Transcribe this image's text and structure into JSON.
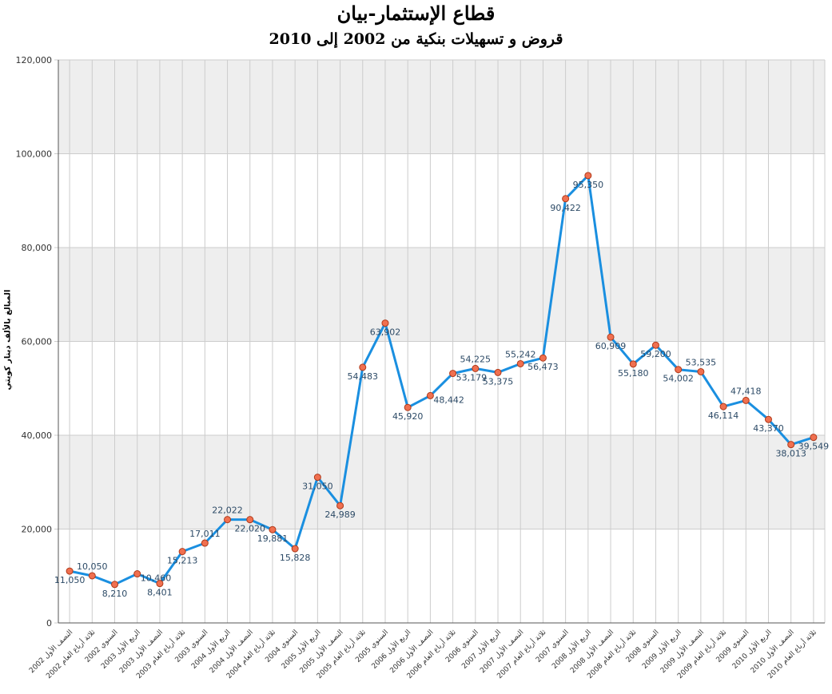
{
  "chart_data": {
    "type": "line",
    "title": "قطاع الإستثمار-بيان",
    "subtitle": "قروض و تسهيلات بنكية من 2002 إلى 2010",
    "ylabel": "المبالغ بالألف دينار كويتي",
    "xlabel": "",
    "ylim": [
      0,
      120000
    ],
    "yticks": [
      "0",
      "20,000",
      "40,000",
      "60,000",
      "80,000",
      "100,000",
      "120,000"
    ],
    "grid": true,
    "categories": [
      "النصف الأول 2002",
      "ثلاثة أرباع العام 2002",
      "السنوي 2002",
      "الربع الأول 2003",
      "النصف الأول 2003",
      "ثلاثة أرباع العام 2003",
      "السنوي 2003",
      "الربع الأول 2004",
      "النصف الأول 2004",
      "ثلاثة أرباع العام 2004",
      "السنوي 2004",
      "الربع الأول 2005",
      "النصف الأول 2005",
      "ثلاثة أرباع العام 2005",
      "السنوي 2005",
      "الربع الأول 2006",
      "النصف الأول 2006",
      "ثلاثة أرباع العام 2006",
      "السنوي 2006",
      "الربع الأول 2007",
      "النصف الأول 2007",
      "ثلاثة أرباع العام 2007",
      "السنوي 2007",
      "الربع الأول 2008",
      "النصف الأول 2008",
      "ثلاثة أرباع العام 2008",
      "السنوي 2008",
      "الربع الأول 2009",
      "النصف الأول 2009",
      "ثلاثة أرباع العام 2009",
      "السنوي 2009",
      "الربع الأول 2010",
      "النصف الأول 2010",
      "ثلاثة أرباع العام 2010"
    ],
    "values": [
      11050,
      10050,
      8210,
      10460,
      8401,
      15213,
      17011,
      22022,
      22020,
      19881,
      15828,
      31050,
      24989,
      54483,
      63902,
      45920,
      48442,
      53179,
      54225,
      53375,
      55242,
      56473,
      90422,
      95350,
      60909,
      55180,
      59200,
      54002,
      53535,
      46114,
      47418,
      43370,
      38013,
      39549
    ],
    "data_labels": [
      "11,050",
      "10,050",
      "8,210",
      "10,460",
      "8,401",
      "15,213",
      "17,011",
      "22,022",
      "22,020",
      "19,881",
      "15,828",
      "31,050",
      "24,989",
      "54,483",
      "63,902",
      "45,920",
      "48,442",
      "53,179",
      "54,225",
      "53,375",
      "55,242",
      "56,473",
      "90,422",
      "95,350",
      "60,909",
      "55,180",
      "59,200",
      "54,002",
      "53,535",
      "46,114",
      "47,418",
      "43,370",
      "38,013",
      "39,549"
    ],
    "label_positions": [
      "below",
      "above",
      "below",
      "right",
      "below",
      "below",
      "above",
      "above",
      "below",
      "below",
      "below",
      "below",
      "below",
      "below",
      "below",
      "below",
      "right",
      "right",
      "above",
      "below",
      "above",
      "below",
      "below",
      "below",
      "below",
      "below",
      "below",
      "below",
      "above",
      "below",
      "above",
      "below",
      "below",
      "below"
    ],
    "colors": {
      "line": "#1a8fe0",
      "marker_fill": "#f07050",
      "marker_stroke": "#b03a1a",
      "band": "#eeeeee",
      "grid": "#cccccc",
      "label": "#2c4a66"
    }
  }
}
